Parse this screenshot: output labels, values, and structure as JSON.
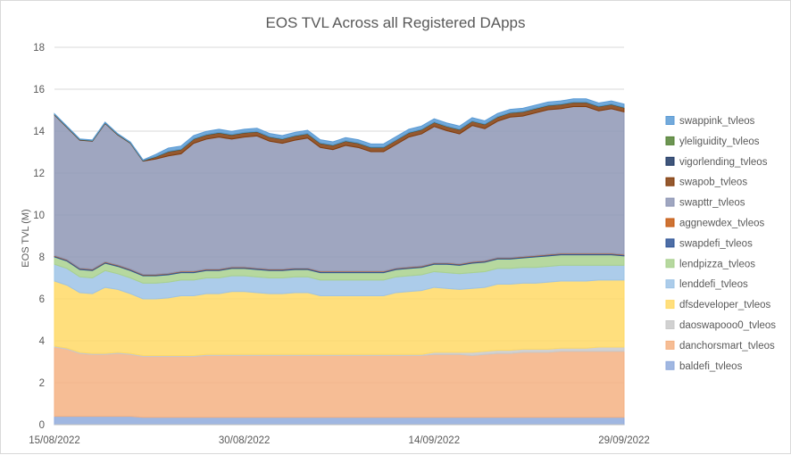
{
  "chart_data": {
    "type": "area",
    "stacked": true,
    "title": "EOS TVL Across all Registered DApps",
    "ylabel": "EOS TVL (M)",
    "xlabel": "",
    "ylim": [
      0,
      18
    ],
    "yticks": [
      0,
      2,
      4,
      6,
      8,
      10,
      12,
      14,
      16,
      18
    ],
    "xtick_labels": [
      "15/08/2022",
      "30/08/2022",
      "14/09/2022",
      "29/09/2022"
    ],
    "grid": "horizontal",
    "legend_position": "right",
    "x": [
      "15/08/2022",
      "16/08/2022",
      "17/08/2022",
      "18/08/2022",
      "19/08/2022",
      "20/08/2022",
      "21/08/2022",
      "22/08/2022",
      "23/08/2022",
      "24/08/2022",
      "25/08/2022",
      "26/08/2022",
      "27/08/2022",
      "28/08/2022",
      "29/08/2022",
      "30/08/2022",
      "31/08/2022",
      "01/09/2022",
      "02/09/2022",
      "03/09/2022",
      "04/09/2022",
      "05/09/2022",
      "06/09/2022",
      "07/09/2022",
      "08/09/2022",
      "09/09/2022",
      "10/09/2022",
      "11/09/2022",
      "12/09/2022",
      "13/09/2022",
      "14/09/2022",
      "15/09/2022",
      "16/09/2022",
      "17/09/2022",
      "18/09/2022",
      "19/09/2022",
      "20/09/2022",
      "21/09/2022",
      "22/09/2022",
      "23/09/2022",
      "24/09/2022",
      "25/09/2022",
      "26/09/2022",
      "27/09/2022",
      "28/09/2022",
      "29/09/2022"
    ],
    "series": [
      {
        "name": "baldefi_tvleos",
        "color": "#8faadc",
        "values": [
          0.4,
          0.4,
          0.4,
          0.4,
          0.4,
          0.4,
          0.4,
          0.35,
          0.35,
          0.35,
          0.35,
          0.35,
          0.35,
          0.35,
          0.35,
          0.35,
          0.35,
          0.35,
          0.35,
          0.35,
          0.35,
          0.35,
          0.35,
          0.35,
          0.35,
          0.35,
          0.35,
          0.35,
          0.35,
          0.35,
          0.35,
          0.35,
          0.35,
          0.35,
          0.35,
          0.35,
          0.35,
          0.35,
          0.35,
          0.35,
          0.35,
          0.35,
          0.35,
          0.35,
          0.35,
          0.35
        ]
      },
      {
        "name": "danchorsmart_tvleos",
        "color": "#f4b183",
        "values": [
          3.3,
          3.2,
          3.0,
          2.95,
          2.95,
          3.0,
          2.95,
          2.9,
          2.9,
          2.9,
          2.9,
          2.9,
          2.95,
          2.95,
          2.95,
          2.95,
          2.95,
          2.95,
          2.95,
          2.95,
          2.95,
          2.95,
          2.95,
          2.95,
          2.95,
          2.95,
          2.95,
          2.95,
          2.95,
          2.95,
          3.0,
          3.0,
          3.0,
          2.95,
          3.0,
          3.05,
          3.05,
          3.1,
          3.1,
          3.1,
          3.15,
          3.15,
          3.15,
          3.15,
          3.15,
          3.15
        ]
      },
      {
        "name": "daoswapooo0_tvleos",
        "color": "#c9c9c9",
        "values": [
          0.05,
          0.05,
          0.05,
          0.05,
          0.05,
          0.05,
          0.05,
          0.05,
          0.05,
          0.05,
          0.05,
          0.05,
          0.05,
          0.05,
          0.05,
          0.05,
          0.05,
          0.05,
          0.05,
          0.05,
          0.05,
          0.05,
          0.05,
          0.05,
          0.05,
          0.05,
          0.05,
          0.05,
          0.05,
          0.05,
          0.1,
          0.1,
          0.1,
          0.15,
          0.15,
          0.15,
          0.15,
          0.15,
          0.15,
          0.15,
          0.15,
          0.15,
          0.15,
          0.2,
          0.2,
          0.2
        ]
      },
      {
        "name": "dfsdeveloper_tvleos",
        "color": "#ffd966",
        "values": [
          3.1,
          3.0,
          2.85,
          2.85,
          3.15,
          3.0,
          2.85,
          2.7,
          2.7,
          2.75,
          2.85,
          2.85,
          2.9,
          2.9,
          3.0,
          3.0,
          2.95,
          2.9,
          2.9,
          2.95,
          2.95,
          2.8,
          2.8,
          2.8,
          2.8,
          2.8,
          2.8,
          2.95,
          3.0,
          3.05,
          3.1,
          3.05,
          3.0,
          3.05,
          3.05,
          3.15,
          3.15,
          3.15,
          3.15,
          3.2,
          3.2,
          3.2,
          3.2,
          3.2,
          3.2,
          3.2
        ]
      },
      {
        "name": "lenddefi_tvleos",
        "color": "#9dc3e6",
        "values": [
          0.8,
          0.8,
          0.75,
          0.75,
          0.8,
          0.75,
          0.75,
          0.75,
          0.75,
          0.75,
          0.75,
          0.75,
          0.75,
          0.75,
          0.75,
          0.75,
          0.75,
          0.75,
          0.75,
          0.75,
          0.75,
          0.75,
          0.75,
          0.75,
          0.75,
          0.75,
          0.75,
          0.75,
          0.75,
          0.75,
          0.75,
          0.75,
          0.75,
          0.75,
          0.75,
          0.75,
          0.75,
          0.75,
          0.75,
          0.75,
          0.75,
          0.75,
          0.75,
          0.7,
          0.7,
          0.7
        ]
      },
      {
        "name": "lendpizza_tvleos",
        "color": "#a9d18e",
        "values": [
          0.35,
          0.35,
          0.35,
          0.35,
          0.35,
          0.35,
          0.35,
          0.35,
          0.35,
          0.35,
          0.35,
          0.35,
          0.35,
          0.35,
          0.35,
          0.35,
          0.35,
          0.35,
          0.35,
          0.35,
          0.35,
          0.35,
          0.35,
          0.35,
          0.35,
          0.35,
          0.35,
          0.35,
          0.35,
          0.35,
          0.35,
          0.4,
          0.4,
          0.45,
          0.45,
          0.45,
          0.45,
          0.45,
          0.5,
          0.5,
          0.5,
          0.5,
          0.5,
          0.5,
          0.5,
          0.45
        ]
      },
      {
        "name": "swapdefi_tvleos",
        "color": "#2f5597",
        "values": [
          0.05,
          0.05,
          0.05,
          0.05,
          0.05,
          0.05,
          0.05,
          0.05,
          0.05,
          0.05,
          0.05,
          0.05,
          0.05,
          0.05,
          0.05,
          0.05,
          0.05,
          0.05,
          0.05,
          0.05,
          0.05,
          0.05,
          0.05,
          0.05,
          0.05,
          0.05,
          0.05,
          0.05,
          0.05,
          0.05,
          0.05,
          0.05,
          0.05,
          0.05,
          0.05,
          0.05,
          0.05,
          0.05,
          0.05,
          0.05,
          0.05,
          0.05,
          0.05,
          0.05,
          0.05,
          0.05
        ]
      },
      {
        "name": "aggnewdex_tvleos",
        "color": "#c55a11",
        "values": [
          0.02,
          0.02,
          0.02,
          0.02,
          0.02,
          0.02,
          0.02,
          0.02,
          0.02,
          0.02,
          0.02,
          0.02,
          0.02,
          0.02,
          0.02,
          0.02,
          0.02,
          0.02,
          0.02,
          0.02,
          0.02,
          0.02,
          0.02,
          0.02,
          0.02,
          0.02,
          0.02,
          0.02,
          0.02,
          0.02,
          0.02,
          0.02,
          0.02,
          0.02,
          0.02,
          0.02,
          0.02,
          0.02,
          0.02,
          0.02,
          0.02,
          0.02,
          0.02,
          0.02,
          0.02,
          0.02
        ]
      },
      {
        "name": "swapttr_tvleos",
        "color": "#8e96b5",
        "values": [
          6.7,
          6.3,
          6.1,
          6.1,
          6.6,
          6.2,
          6.0,
          5.4,
          5.5,
          5.6,
          5.6,
          6.1,
          6.2,
          6.3,
          6.1,
          6.2,
          6.3,
          6.1,
          6.0,
          6.1,
          6.2,
          5.9,
          5.8,
          6.0,
          5.9,
          5.7,
          5.7,
          5.9,
          6.2,
          6.3,
          6.5,
          6.3,
          6.2,
          6.5,
          6.3,
          6.5,
          6.7,
          6.7,
          6.8,
          6.9,
          6.9,
          7.0,
          7.0,
          6.8,
          6.9,
          6.8
        ]
      },
      {
        "name": "swapob_tvleos",
        "color": "#833c0b",
        "values": [
          0.02,
          0.02,
          0.02,
          0.02,
          0.02,
          0.02,
          0.02,
          0.02,
          0.1,
          0.2,
          0.2,
          0.2,
          0.2,
          0.2,
          0.2,
          0.2,
          0.2,
          0.2,
          0.2,
          0.2,
          0.2,
          0.2,
          0.2,
          0.2,
          0.2,
          0.2,
          0.2,
          0.2,
          0.2,
          0.2,
          0.2,
          0.2,
          0.2,
          0.2,
          0.2,
          0.2,
          0.2,
          0.2,
          0.2,
          0.2,
          0.2,
          0.2,
          0.2,
          0.2,
          0.2,
          0.2
        ]
      },
      {
        "name": "vigorlending_tvleos",
        "color": "#1f3864",
        "values": [
          0.01,
          0.01,
          0.01,
          0.01,
          0.01,
          0.01,
          0.01,
          0.01,
          0.01,
          0.01,
          0.01,
          0.01,
          0.01,
          0.01,
          0.01,
          0.01,
          0.01,
          0.01,
          0.01,
          0.01,
          0.01,
          0.01,
          0.01,
          0.01,
          0.01,
          0.01,
          0.01,
          0.01,
          0.01,
          0.01,
          0.01,
          0.01,
          0.01,
          0.01,
          0.01,
          0.01,
          0.01,
          0.01,
          0.01,
          0.01,
          0.01,
          0.01,
          0.01,
          0.01,
          0.01,
          0.01
        ]
      },
      {
        "name": "yleliguidity_tvleos",
        "color": "#548235",
        "values": [
          0.01,
          0.01,
          0.01,
          0.01,
          0.01,
          0.01,
          0.01,
          0.01,
          0.01,
          0.01,
          0.01,
          0.01,
          0.01,
          0.01,
          0.01,
          0.01,
          0.01,
          0.01,
          0.01,
          0.01,
          0.01,
          0.01,
          0.01,
          0.01,
          0.01,
          0.01,
          0.01,
          0.01,
          0.01,
          0.01,
          0.01,
          0.01,
          0.01,
          0.01,
          0.01,
          0.01,
          0.01,
          0.01,
          0.01,
          0.01,
          0.01,
          0.01,
          0.01,
          0.01,
          0.01,
          0.01
        ]
      },
      {
        "name": "swappink_tvleos",
        "color": "#5b9bd5",
        "values": [
          0.02,
          0.02,
          0.02,
          0.02,
          0.02,
          0.02,
          0.02,
          0.02,
          0.1,
          0.15,
          0.15,
          0.15,
          0.15,
          0.15,
          0.15,
          0.15,
          0.15,
          0.15,
          0.15,
          0.15,
          0.15,
          0.15,
          0.15,
          0.15,
          0.15,
          0.15,
          0.15,
          0.15,
          0.15,
          0.15,
          0.15,
          0.15,
          0.15,
          0.15,
          0.15,
          0.15,
          0.15,
          0.15,
          0.15,
          0.15,
          0.15,
          0.15,
          0.15,
          0.15,
          0.15,
          0.15
        ]
      }
    ],
    "legend_order": [
      "swappink_tvleos",
      "yleliguidity_tvleos",
      "vigorlending_tvleos",
      "swapob_tvleos",
      "swapttr_tvleos",
      "aggnewdex_tvleos",
      "swapdefi_tvleos",
      "lendpizza_tvleos",
      "lenddefi_tvleos",
      "dfsdeveloper_tvleos",
      "daoswapooo0_tvleos",
      "danchorsmart_tvleos",
      "baldefi_tvleos"
    ]
  }
}
